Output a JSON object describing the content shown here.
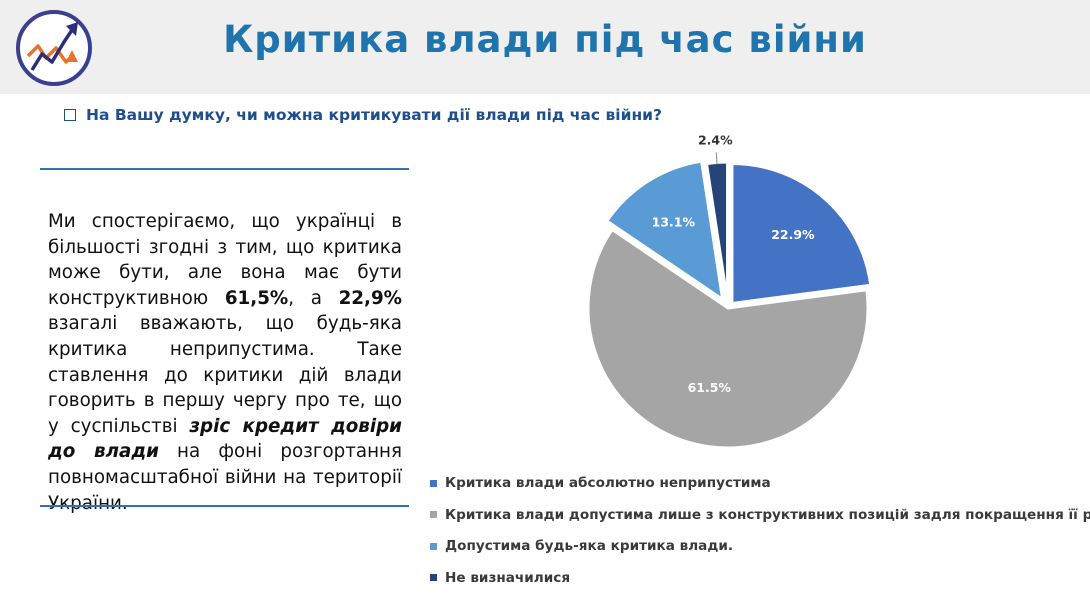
{
  "header": {
    "title": "Критика влади під час війни"
  },
  "question": "На Вашу думку, чи можна критикувати дії влади під час війни?",
  "paragraph": {
    "p1": "Ми спостерігаємо, що українці в більшості згодні з тим, що критика може бути, але вона має бути конструктивною ",
    "b1": "61,5%",
    "p2": ", а ",
    "b2": "22,9%",
    "p3": " взагалі вважають, що будь-яка критика неприпустима. Таке ставлення до критики дій влади говорить в першу чергу про те, що у суспільстві ",
    "i1": "зріс кредит довіри до влади",
    "p4": " на фоні розгортання повномасштабної війни на території України."
  },
  "chart_data": {
    "type": "pie",
    "categories": [
      "Критика влади абсолютно неприпустима",
      "Критика влади допустима лише з конструктивних позицій задля покращення її роботи",
      "Допустима будь-яка критика влади.",
      "Не визначилися"
    ],
    "values": [
      22.9,
      61.5,
      13.1,
      2.4
    ],
    "labels": [
      "22.9%",
      "61.5%",
      "13.1%",
      "2.4%"
    ],
    "colors": [
      "#4472c4",
      "#a5a5a5",
      "#5b9bd5",
      "#264478"
    ],
    "legend_position": "bottom"
  }
}
